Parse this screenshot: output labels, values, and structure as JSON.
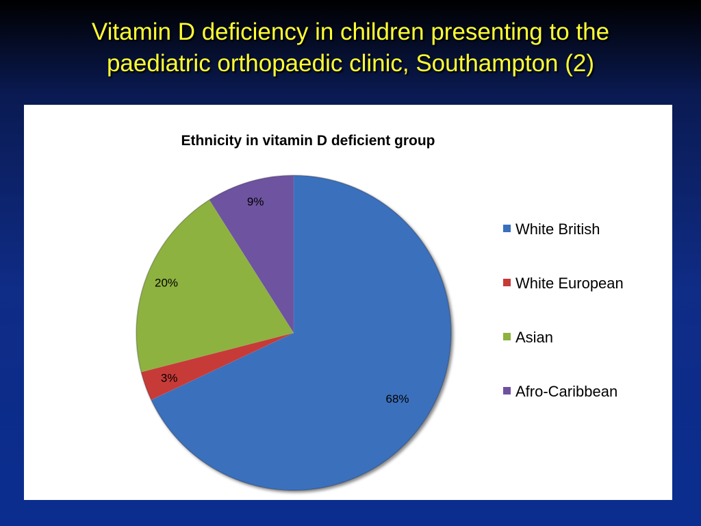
{
  "slide": {
    "title_line1": "Vitamin D deficiency in children presenting to the",
    "title_line2": "paediatric orthopaedic clinic, Southampton (2)"
  },
  "chart_data": {
    "type": "pie",
    "title": "Ethnicity in vitamin D deficient group",
    "legend_position": "right",
    "slices": [
      {
        "name": "White British",
        "value": 68,
        "label": "68%",
        "color": "#3a6fbd"
      },
      {
        "name": "White European",
        "value": 3,
        "label": "3%",
        "color": "#c63a37"
      },
      {
        "name": "Asian",
        "value": 20,
        "label": "20%",
        "color": "#8db23f"
      },
      {
        "name": "Afro-Caribbean",
        "value": 9,
        "label": "9%",
        "color": "#6e52a0"
      }
    ]
  }
}
